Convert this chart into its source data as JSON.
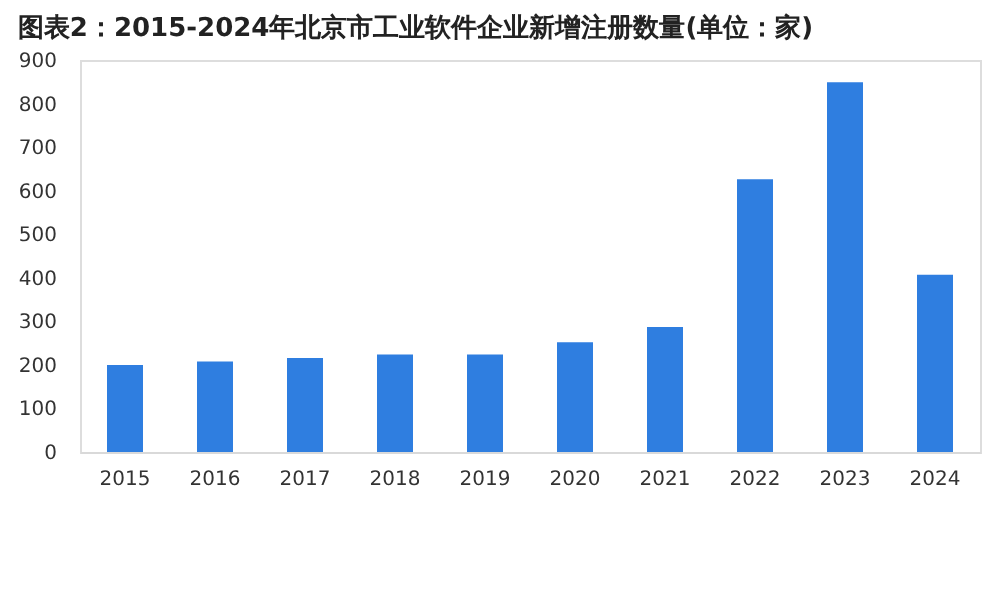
{
  "chart_data": {
    "type": "bar",
    "title": "图表2：2015-2024年北京市工业软件企业新增注册数量(单位：家)",
    "categories": [
      "2015",
      "2016",
      "2017",
      "2018",
      "2019",
      "2020",
      "2021",
      "2022",
      "2023",
      "2024"
    ],
    "values": [
      200,
      208,
      216,
      224,
      224,
      252,
      287,
      626,
      849,
      407
    ],
    "color": "#2f7ee0",
    "ylim": [
      0,
      900
    ],
    "yticks": [
      0,
      100,
      200,
      300,
      400,
      500,
      600,
      700,
      800,
      900
    ],
    "grid": false
  }
}
